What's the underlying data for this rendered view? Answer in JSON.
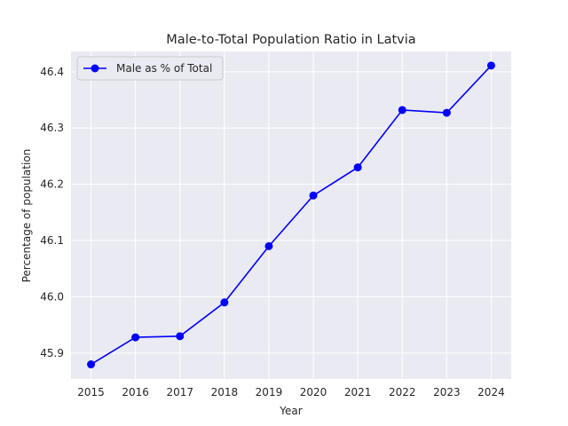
{
  "chart_data": {
    "type": "line",
    "title": "Male-to-Total Population Ratio in Latvia",
    "xlabel": "Year",
    "ylabel": "Percentage of population",
    "x": [
      2015,
      2016,
      2017,
      2018,
      2019,
      2020,
      2021,
      2022,
      2023,
      2024
    ],
    "x_tick_labels": [
      "2015",
      "2016",
      "2017",
      "2018",
      "2019",
      "2020",
      "2021",
      "2022",
      "2023",
      "2024"
    ],
    "y_ticks": [
      45.9,
      46.0,
      46.1,
      46.2,
      46.3,
      46.4
    ],
    "y_tick_labels": [
      "45.9",
      "46.0",
      "46.1",
      "46.2",
      "46.3",
      "46.4"
    ],
    "xlim": [
      2014.55,
      2024.45
    ],
    "ylim": [
      45.854,
      46.436
    ],
    "grid": true,
    "legend_position": "top-left",
    "series": [
      {
        "name": "Male as % of Total",
        "color": "#0000ff",
        "marker": "circle",
        "values": [
          45.88,
          45.928,
          45.93,
          45.99,
          46.09,
          46.18,
          46.23,
          46.332,
          46.327,
          46.411
        ]
      }
    ]
  },
  "colors": {
    "plot_background": "#eaeaf2",
    "grid": "#ffffff",
    "text": "#262626"
  }
}
